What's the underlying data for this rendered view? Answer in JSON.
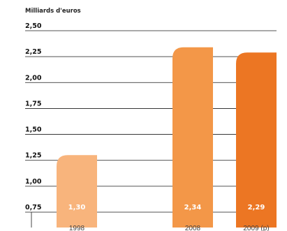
{
  "chart_data": {
    "type": "bar",
    "unit_label": "Milliards d'euros",
    "categories": [
      "1998",
      "2008",
      "2009 (p)"
    ],
    "values": [
      1.3,
      2.34,
      2.29
    ],
    "value_labels": [
      "1,30",
      "2,34",
      "2,29"
    ],
    "bar_colors": [
      "#F8B47C",
      "#F39748",
      "#EC7623"
    ],
    "ylim": [
      0.75,
      2.5
    ],
    "yticks": [
      0.75,
      1.0,
      1.25,
      1.5,
      1.75,
      2.0,
      2.25,
      2.5
    ],
    "ytick_labels": [
      "0,75",
      "1,00",
      "1,25",
      "1,50",
      "1,75",
      "2,00",
      "2,25",
      "2,50"
    ],
    "grid": true,
    "xlabel": "",
    "ylabel": ""
  }
}
